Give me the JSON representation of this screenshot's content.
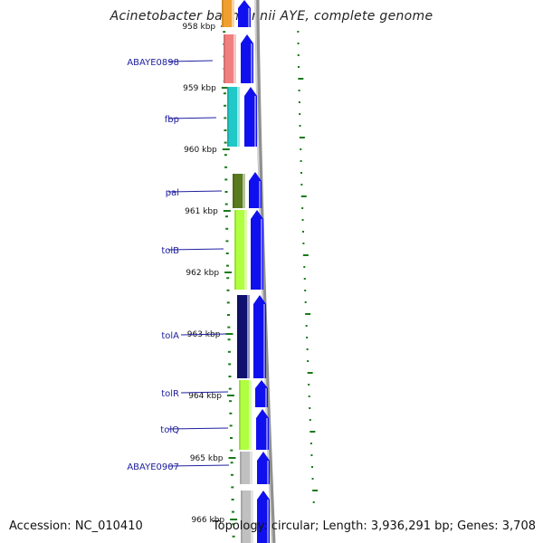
{
  "title": "Acinetobacter baumannii AYE, complete genome",
  "accession": "Accession: NC_010410",
  "topology": "Topology: circular; Length: 3,936,291 bp; Genes: 3,708",
  "ruler": [
    {
      "label": "958 kbp"
    },
    {
      "label": "959 kbp"
    },
    {
      "label": "960 kbp"
    },
    {
      "label": "961 kbp"
    },
    {
      "label": "962 kbp"
    },
    {
      "label": "963 kbp"
    },
    {
      "label": "964 kbp"
    },
    {
      "label": "965 kbp"
    },
    {
      "label": "966 kbp"
    }
  ],
  "genes": [
    {
      "name": "",
      "color": "#f0a030"
    },
    {
      "name": "ABAYE0898",
      "color": "#f08080"
    },
    {
      "name": "fbp",
      "color": "#20c8c8"
    },
    {
      "name": "pal",
      "color": "#5a7a20"
    },
    {
      "name": "tolB",
      "color": "#b0ff40"
    },
    {
      "name": "tolA",
      "color": "#101070"
    },
    {
      "name": "tolR",
      "color": "#b0ff40"
    },
    {
      "name": "tolQ",
      "color": "#b0ff40"
    },
    {
      "name": "ABAYE0907",
      "color": "#c0c0c0"
    },
    {
      "name": "",
      "color": "#c0c0c0"
    }
  ],
  "colors": {
    "cds_arrow": "#1010ee",
    "label": "#2020a0",
    "ruler_tick": "#1a7a1a",
    "backbone": "#909090"
  }
}
